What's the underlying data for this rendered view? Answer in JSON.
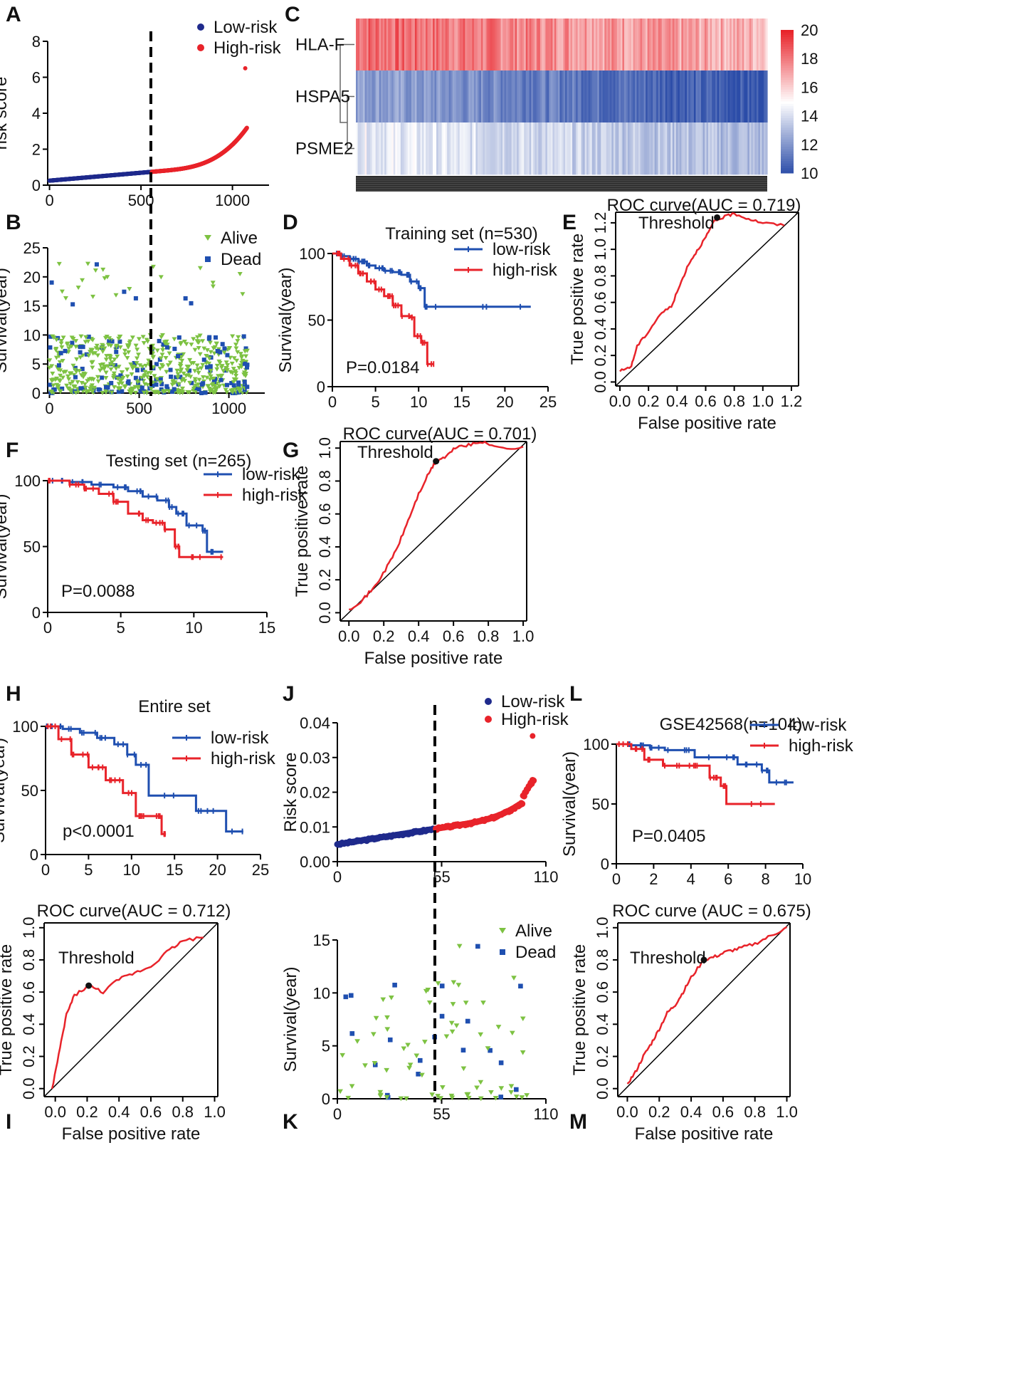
{
  "figure": {
    "letters": [
      "A",
      "B",
      "C",
      "D",
      "E",
      "F",
      "G",
      "H",
      "I",
      "J",
      "K",
      "L",
      "M"
    ]
  },
  "chart_data": [
    {
      "id": "A",
      "type": "scatter",
      "ylabel": "risk score",
      "xlabel": "",
      "xticks": [
        "0",
        "500",
        "1000"
      ],
      "yticks": [
        "0",
        "2",
        "4",
        "6",
        "8"
      ],
      "xlim": [
        -10,
        1200
      ],
      "ylim": [
        0,
        8
      ],
      "cutoff": 560,
      "series": [
        {
          "name": "Low-risk",
          "color": "#1f2a8c"
        },
        {
          "name": "High-risk",
          "color": "#e8232a"
        }
      ],
      "n": 1080,
      "outlier": [
        1070,
        6.5
      ]
    },
    {
      "id": "B",
      "type": "scatter",
      "ylabel": "Survival(year)",
      "xlabel": "",
      "xticks": [
        "0",
        "500",
        "1000"
      ],
      "yticks": [
        "0",
        "5",
        "10",
        "15",
        "20",
        "25"
      ],
      "xlim": [
        -10,
        1200
      ],
      "ylim": [
        0,
        25
      ],
      "cutoff": 530,
      "series": [
        {
          "name": "Alive",
          "color": "#7dc242",
          "marker": "triangle"
        },
        {
          "name": "Dead",
          "color": "#1f4fb0",
          "marker": "square"
        }
      ]
    },
    {
      "id": "C",
      "type": "heatmap",
      "rows": [
        "HLA-F",
        "HSPA5",
        "PSME2"
      ],
      "colorbar": {
        "ticks": [
          "20",
          "18",
          "16",
          "14",
          "12",
          "10"
        ],
        "range": [
          10,
          20
        ],
        "colors": [
          "#2b4ca8",
          "#ffffff",
          "#e8232a"
        ]
      }
    },
    {
      "id": "D",
      "type": "line",
      "title": "Training set (n=530)",
      "ylabel": "Survival(year)",
      "xticks": [
        "0",
        "5",
        "10",
        "15",
        "20",
        "25"
      ],
      "yticks": [
        "0",
        "50",
        "100"
      ],
      "xlim": [
        0,
        25
      ],
      "ylim": [
        0,
        100
      ],
      "annotation": "P=0.0184",
      "series": [
        {
          "name": "low-risk",
          "color": "#1f4fb0",
          "x": [
            0,
            1,
            2,
            3,
            4,
            5,
            6,
            7,
            8,
            9,
            10,
            10.7,
            11,
            23
          ],
          "y": [
            100,
            98,
            96,
            94,
            91,
            89,
            87,
            86,
            84,
            79,
            74,
            60,
            60,
            60
          ]
        },
        {
          "name": "high-risk",
          "color": "#e8232a",
          "x": [
            0,
            1,
            2,
            3,
            4,
            5,
            6,
            7,
            8,
            9,
            9.5,
            10.3,
            11,
            11.8
          ],
          "y": [
            100,
            96,
            91,
            85,
            79,
            73,
            68,
            61,
            53,
            52,
            38,
            33,
            17,
            17
          ]
        }
      ]
    },
    {
      "id": "E",
      "type": "line",
      "title": "ROC curve(AUC =  0.719)",
      "xlabel": "False positive rate",
      "ylabel": "True positive rate",
      "xticks": [
        "0.0",
        "0.2",
        "0.4",
        "0.6",
        "0.8",
        "1.0",
        "1.2"
      ],
      "yticks": [
        "0.0",
        "0.2",
        "0.4",
        "0.6",
        "0.8",
        "1.0",
        "1.2"
      ],
      "xlim": [
        -0.03,
        1.25
      ],
      "ylim": [
        -0.03,
        1.28
      ],
      "threshold_label": "Threshold",
      "threshold": [
        0.68,
        1.24
      ],
      "series": [
        {
          "name": "ROC",
          "color": "#e8232a",
          "x": [
            0,
            0.08,
            0.12,
            0.2,
            0.28,
            0.36,
            0.42,
            0.48,
            0.54,
            0.6,
            0.66,
            0.72,
            0.8,
            0.9,
            1.0,
            1.15
          ],
          "y": [
            0.08,
            0.12,
            0.27,
            0.38,
            0.51,
            0.57,
            0.73,
            0.89,
            0.99,
            1.09,
            1.21,
            1.24,
            1.27,
            1.23,
            1.2,
            1.18
          ]
        }
      ]
    },
    {
      "id": "F",
      "type": "line",
      "title": "Testing set (n=265)",
      "ylabel": "Survival(year)",
      "xticks": [
        "0",
        "5",
        "10",
        "15"
      ],
      "yticks": [
        "0",
        "50",
        "100"
      ],
      "xlim": [
        0,
        15
      ],
      "ylim": [
        0,
        100
      ],
      "annotation": "P=0.0088",
      "series": [
        {
          "name": "low-risk",
          "color": "#1f4fb0",
          "x": [
            0,
            1.5,
            3,
            4.5,
            5.5,
            6.5,
            7.5,
            8.3,
            8.8,
            9.5,
            10.6,
            10.9,
            12
          ],
          "y": [
            100,
            99,
            97,
            95,
            92,
            88,
            85,
            80,
            75,
            66,
            62,
            46,
            46
          ]
        },
        {
          "name": "high-risk",
          "color": "#e8232a",
          "x": [
            0,
            1.5,
            2.5,
            3.5,
            4.5,
            5.5,
            6.5,
            7.2,
            8,
            8.7,
            9,
            10,
            12
          ],
          "y": [
            100,
            97,
            94,
            90,
            84,
            75,
            70,
            68,
            63,
            50,
            42,
            42,
            42
          ]
        }
      ]
    },
    {
      "id": "G",
      "type": "line",
      "title": "ROC curve(AUC =  0.701)",
      "xlabel": "False positive rate",
      "ylabel": "True positive rate",
      "xticks": [
        "0.0",
        "0.2",
        "0.4",
        "0.6",
        "0.8",
        "1.0"
      ],
      "yticks": [
        "0.0",
        "0.2",
        "0.4",
        "0.6",
        "0.8",
        "1.0"
      ],
      "xlim": [
        -0.05,
        1.02
      ],
      "ylim": [
        -0.05,
        1.04
      ],
      "threshold_label": "Threshold",
      "threshold": [
        0.5,
        0.92
      ],
      "series": [
        {
          "name": "ROC",
          "color": "#e8232a",
          "x": [
            0,
            0.08,
            0.15,
            0.22,
            0.28,
            0.34,
            0.4,
            0.46,
            0.5,
            0.56,
            0.62,
            0.7,
            0.78,
            0.86,
            1.0
          ],
          "y": [
            0.02,
            0.08,
            0.16,
            0.28,
            0.4,
            0.56,
            0.72,
            0.85,
            0.92,
            0.95,
            1.01,
            1.02,
            1.04,
            1.0,
            1.0
          ]
        }
      ]
    },
    {
      "id": "H",
      "type": "line",
      "title": "Entire set",
      "ylabel": "Survival(year)",
      "xticks": [
        "0",
        "5",
        "10",
        "15",
        "20",
        "25"
      ],
      "yticks": [
        "0",
        "50",
        "100"
      ],
      "xlim": [
        0,
        25
      ],
      "ylim": [
        0,
        100
      ],
      "annotation": "p<0.0001",
      "series": [
        {
          "name": "low-risk",
          "color": "#1f4fb0",
          "x": [
            0,
            2,
            4,
            6,
            8,
            9.5,
            10.5,
            12,
            17.5,
            21,
            23
          ],
          "y": [
            100,
            98,
            95,
            91,
            86,
            78,
            70,
            46,
            34,
            18,
            18
          ]
        },
        {
          "name": "high-risk",
          "color": "#e8232a",
          "x": [
            0,
            1.5,
            3,
            5,
            7,
            9,
            10.5,
            12,
            13.5,
            14
          ],
          "y": [
            100,
            90,
            78,
            68,
            58,
            48,
            30,
            30,
            16,
            16
          ]
        }
      ]
    },
    {
      "id": "I",
      "type": "line",
      "title": "ROC curve(AUC =  0.712)",
      "xlabel": "False positive rate",
      "ylabel": "True positive rate",
      "xticks": [
        "0.0",
        "0.2",
        "0.4",
        "0.6",
        "0.8",
        "1.0"
      ],
      "yticks": [
        "0.0",
        "0.2",
        "0.4",
        "0.6",
        "0.8",
        "1.0"
      ],
      "xlim": [
        -0.07,
        1.02
      ],
      "ylim": [
        -0.05,
        1.03
      ],
      "threshold_label": "Threshold",
      "threshold": [
        0.21,
        0.64
      ],
      "series": [
        {
          "name": "ROC",
          "color": "#e8232a",
          "x": [
            -0.02,
            0.03,
            0.07,
            0.12,
            0.21,
            0.3,
            0.4,
            0.5,
            0.6,
            0.7,
            0.8,
            0.93
          ],
          "y": [
            0.0,
            0.25,
            0.46,
            0.58,
            0.64,
            0.6,
            0.68,
            0.72,
            0.76,
            0.85,
            0.92,
            0.94
          ]
        }
      ]
    },
    {
      "id": "J",
      "type": "scatter",
      "ylabel": "Risk score",
      "xlabel": "",
      "xticks": [
        "0",
        "55",
        "110"
      ],
      "yticks": [
        "0.00",
        "0.01",
        "0.02",
        "0.03",
        "0.04"
      ],
      "xlim": [
        0,
        110
      ],
      "ylim": [
        0,
        0.04
      ],
      "cutoff": 52,
      "series": [
        {
          "name": "Low-risk",
          "color": "#1f2a8c"
        },
        {
          "name": "High-risk",
          "color": "#e8232a"
        }
      ],
      "n": 104
    },
    {
      "id": "K",
      "type": "scatter",
      "ylabel": "Survival(year)",
      "xlabel": "",
      "xticks": [
        "0",
        "55",
        "110"
      ],
      "yticks": [
        "0",
        "5",
        "10",
        "15"
      ],
      "xlim": [
        0,
        110
      ],
      "ylim": [
        0,
        15
      ],
      "cutoff": 52,
      "series": [
        {
          "name": "Alive",
          "color": "#7dc242",
          "marker": "triangle"
        },
        {
          "name": "Dead",
          "color": "#1f4fb0",
          "marker": "square"
        }
      ]
    },
    {
      "id": "L",
      "type": "line",
      "title": "GSE42568(n=104)",
      "ylabel": "Survival(year)",
      "xticks": [
        "0",
        "2",
        "4",
        "6",
        "8",
        "10"
      ],
      "yticks": [
        "0",
        "50",
        "100"
      ],
      "xlim": [
        0,
        10
      ],
      "ylim": [
        0,
        100
      ],
      "annotation": "P=0.0405",
      "series": [
        {
          "name": "low-risk",
          "color": "#1f4fb0",
          "x": [
            0,
            0.8,
            1.8,
            2.6,
            4.2,
            6.5,
            7.8,
            8.2,
            9.5
          ],
          "y": [
            100,
            99,
            97,
            95,
            89,
            83,
            78,
            68,
            68
          ]
        },
        {
          "name": "high-risk",
          "color": "#e8232a",
          "x": [
            0,
            0.8,
            1.5,
            2.5,
            4,
            5,
            5.6,
            5.9,
            8.5
          ],
          "y": [
            100,
            96,
            87,
            82,
            82,
            72,
            65,
            50,
            50
          ]
        }
      ]
    },
    {
      "id": "M",
      "type": "line",
      "title": "ROC curve (AUC =  0.675)",
      "xlabel": "False positive rate",
      "ylabel": "True positive rate",
      "xticks": [
        "0.0",
        "0.2",
        "0.4",
        "0.6",
        "0.8",
        "1.0"
      ],
      "yticks": [
        "0.0",
        "0.2",
        "0.4",
        "0.6",
        "0.8",
        "1.0"
      ],
      "xlim": [
        -0.06,
        1.02
      ],
      "ylim": [
        -0.05,
        1.03
      ],
      "threshold_label": "Threshold",
      "threshold": [
        0.48,
        0.8
      ],
      "series": [
        {
          "name": "ROC",
          "color": "#e8232a",
          "x": [
            0,
            0.05,
            0.1,
            0.15,
            0.2,
            0.25,
            0.3,
            0.35,
            0.4,
            0.48,
            0.55,
            0.62,
            0.7,
            0.8,
            0.9,
            1.0
          ],
          "y": [
            0.03,
            0.1,
            0.2,
            0.28,
            0.37,
            0.47,
            0.52,
            0.6,
            0.69,
            0.8,
            0.82,
            0.85,
            0.87,
            0.9,
            0.95,
            1.0
          ]
        }
      ]
    }
  ]
}
